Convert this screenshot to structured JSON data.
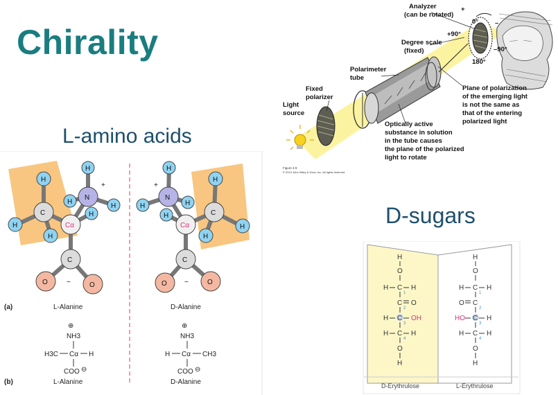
{
  "slide": {
    "title": "Chirality",
    "l_amino_heading": "L-amino acids",
    "d_sugars_heading": "D-sugars"
  },
  "polarimeter": {
    "analyzer": "Analyzer",
    "analyzer_note": "(can be rotated)",
    "plus": "+",
    "minus": "–",
    "deg0": "0°",
    "deg_p90": "+90°",
    "deg_m90": "–90°",
    "deg180": "180°",
    "degree_scale": "Degree scale",
    "degree_scale_note": "(fixed)",
    "tube_l1": "Polarimeter",
    "tube_l2": "tube",
    "fixed_l1": "Fixed",
    "fixed_l2": "polarizer",
    "light_l1": "Light",
    "light_l2": "source",
    "plane_lines": [
      "Plane of polarization",
      "of the emerging light",
      "is not the same as",
      "that of the entering",
      "polarized light"
    ],
    "active_lines": [
      "Optically active",
      "substance in solution",
      "in the tube causes",
      "the plane of the polarized",
      "light to rotate"
    ],
    "figure_caption_1": "Figure 4-9",
    "figure_caption_2": "© 2013 John Wiley & Sons, Inc. All rights reserved."
  },
  "alanine": {
    "h": "H",
    "c": "C",
    "n": "N",
    "o": "O",
    "ca": "Cα",
    "plus": "+",
    "minus": "−",
    "panel_a": "(a)",
    "panel_b": "(b)",
    "l_name": "L-Alanine",
    "d_name": "D-Alanine",
    "nh3": "NH3",
    "h3c": "H3C",
    "ch3": "CH3",
    "coo": "COO",
    "charge_plus": "⊕",
    "charge_minus": "⊖"
  },
  "erythrulose": {
    "left_name": "D-Erythrulose",
    "right_name": "L-Erythrulose",
    "h": "H",
    "o": "O",
    "c": "C",
    "oh": "OH",
    "ho": "HO",
    "idx1": "1",
    "idx2": "2",
    "idx3": "3",
    "idx4": "4"
  }
}
